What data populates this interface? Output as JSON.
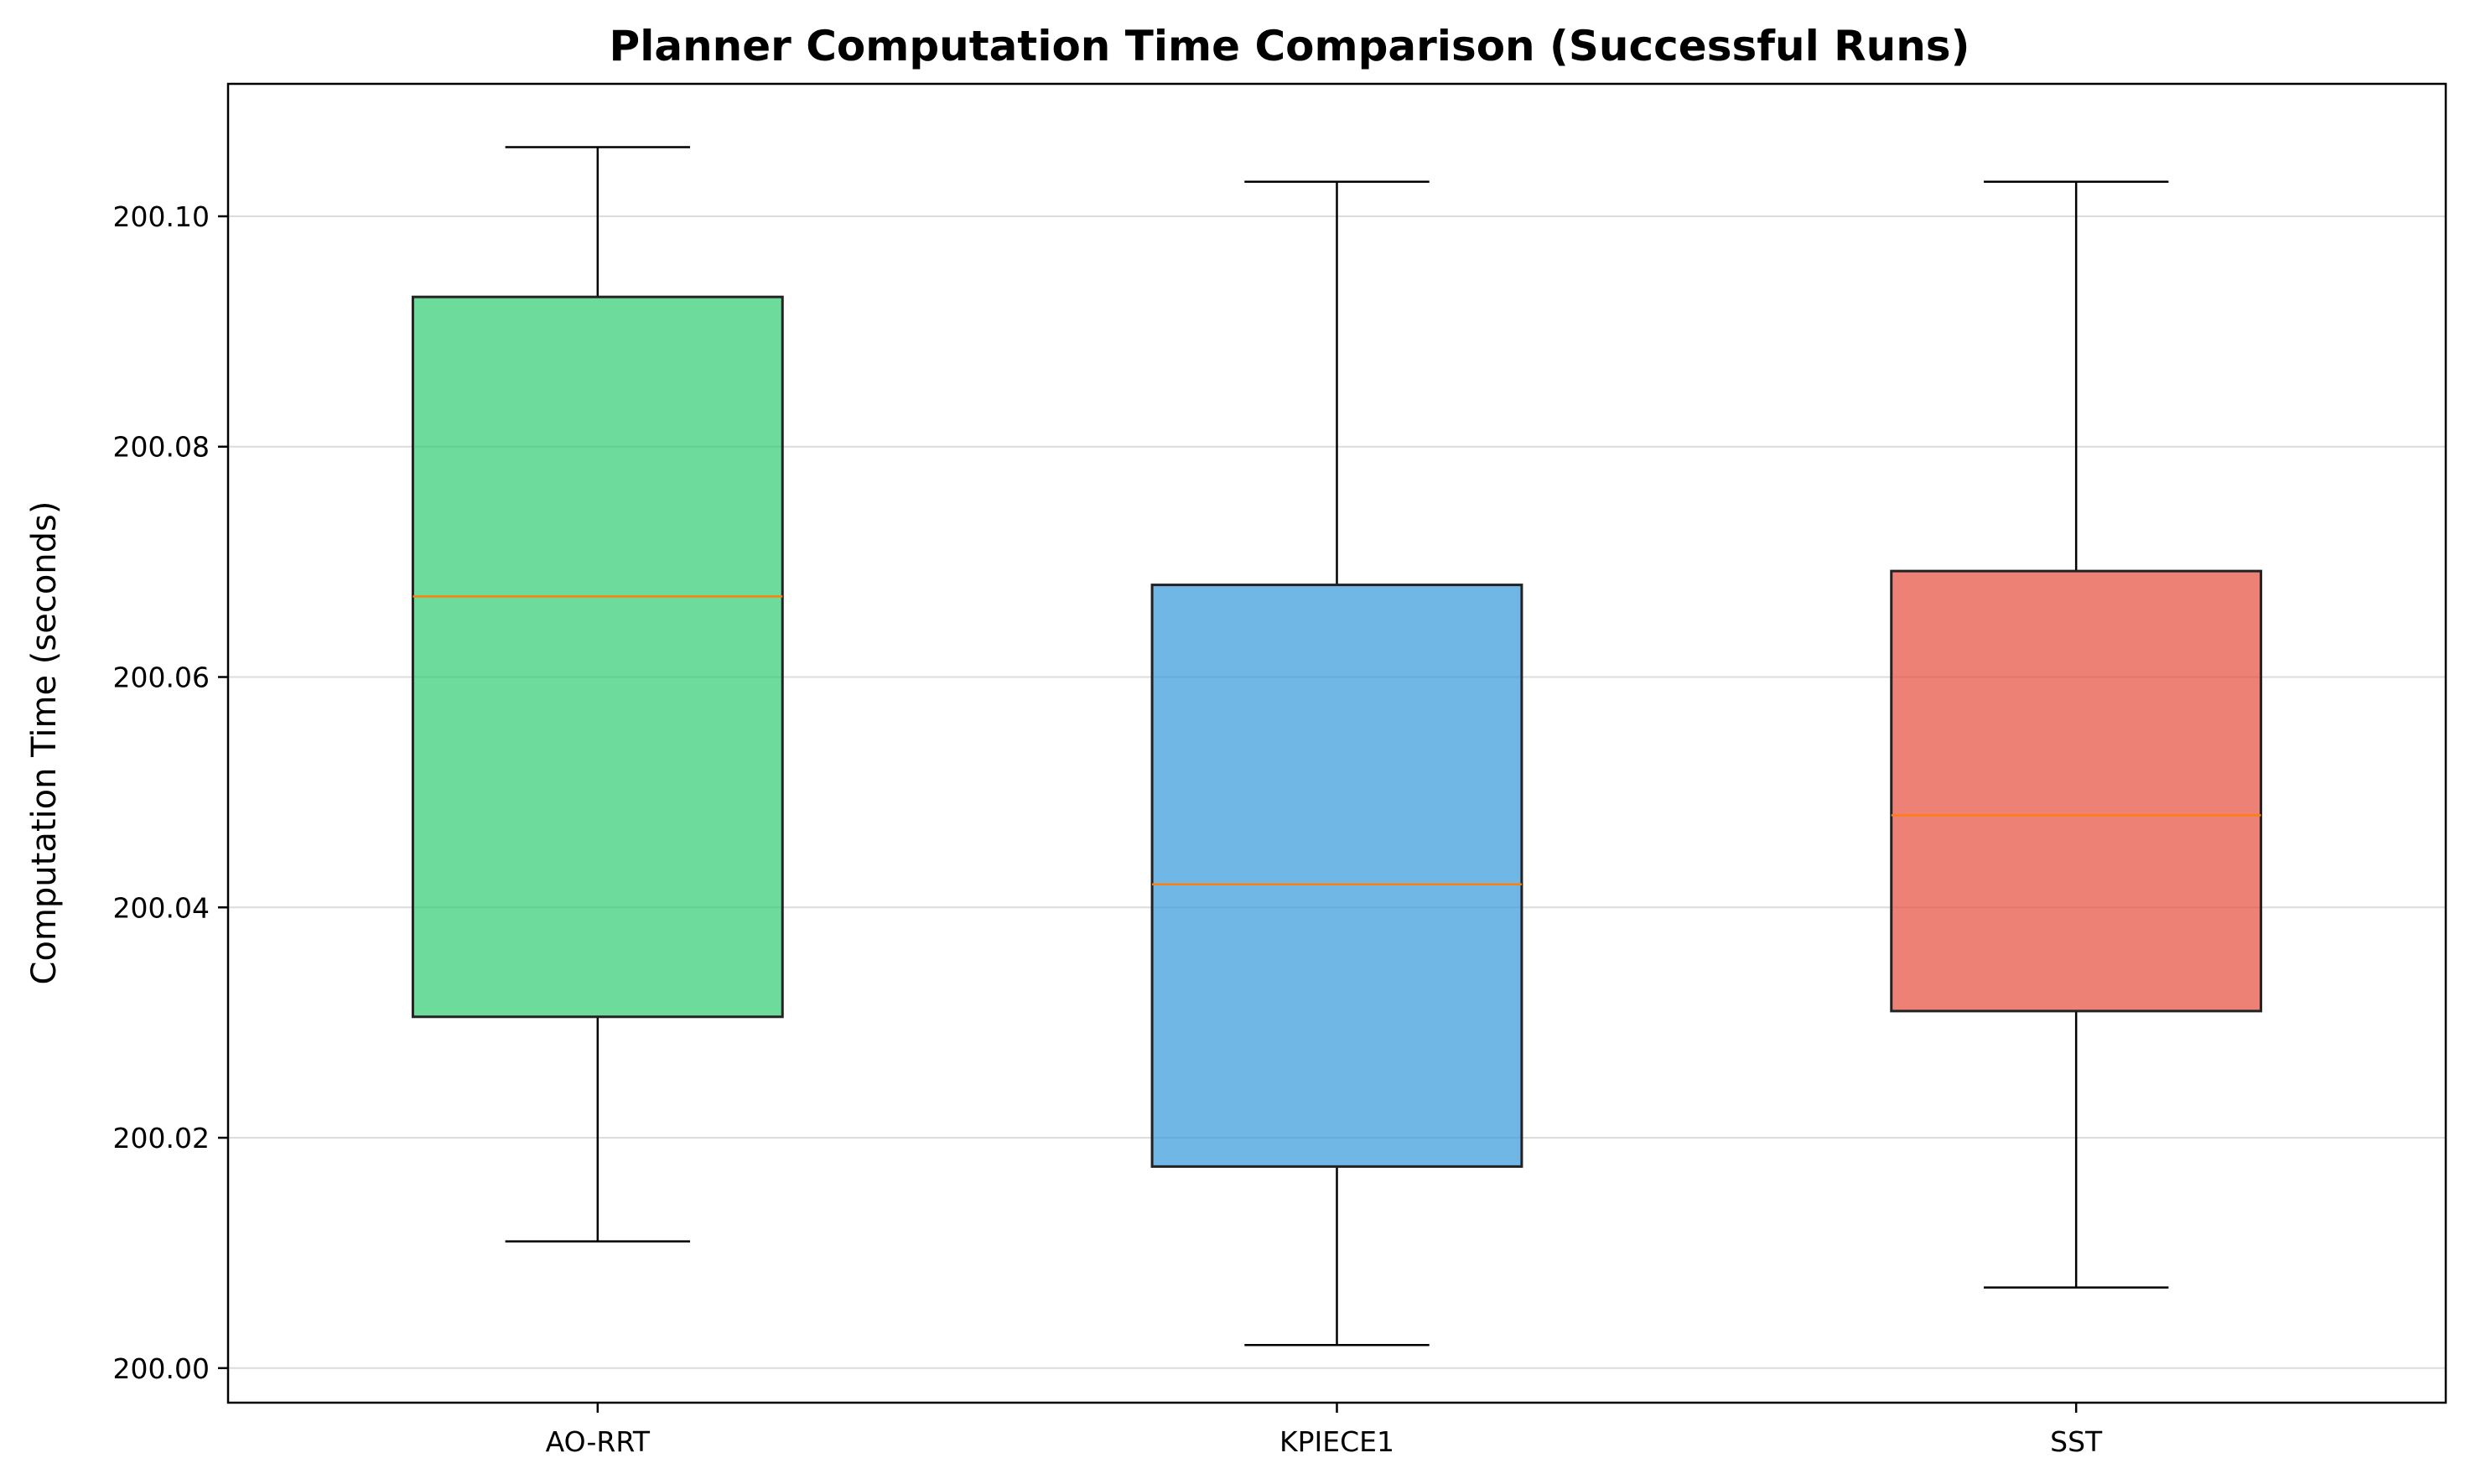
{
  "chart_data": {
    "type": "box",
    "title": "Planner Computation Time Comparison (Successful Runs)",
    "xlabel": "",
    "ylabel": "Computation Time (seconds)",
    "ylim": [
      199.997,
      200.1115
    ],
    "yticks": [
      200.0,
      200.02,
      200.04,
      200.06,
      200.08,
      200.1
    ],
    "ytick_labels": [
      "200.00",
      "200.02",
      "200.04",
      "200.06",
      "200.08",
      "200.10"
    ],
    "grid": "y",
    "categories": [
      "AO-RRT",
      "KPIECE1",
      "SST"
    ],
    "boxes": [
      {
        "name": "AO-RRT",
        "whisker_low": 200.011,
        "q1": 200.0305,
        "median": 200.067,
        "q3": 200.093,
        "whisker_high": 200.106,
        "color": "#2ecc71"
      },
      {
        "name": "KPIECE1",
        "whisker_low": 200.002,
        "q1": 200.0175,
        "median": 200.042,
        "q3": 200.068,
        "whisker_high": 200.103,
        "color": "#3498db"
      },
      {
        "name": "SST",
        "whisker_low": 200.007,
        "q1": 200.031,
        "median": 200.048,
        "q3": 200.0692,
        "whisker_high": 200.103,
        "color": "#e74c3c"
      }
    ],
    "median_color": "#ff7f0e"
  }
}
